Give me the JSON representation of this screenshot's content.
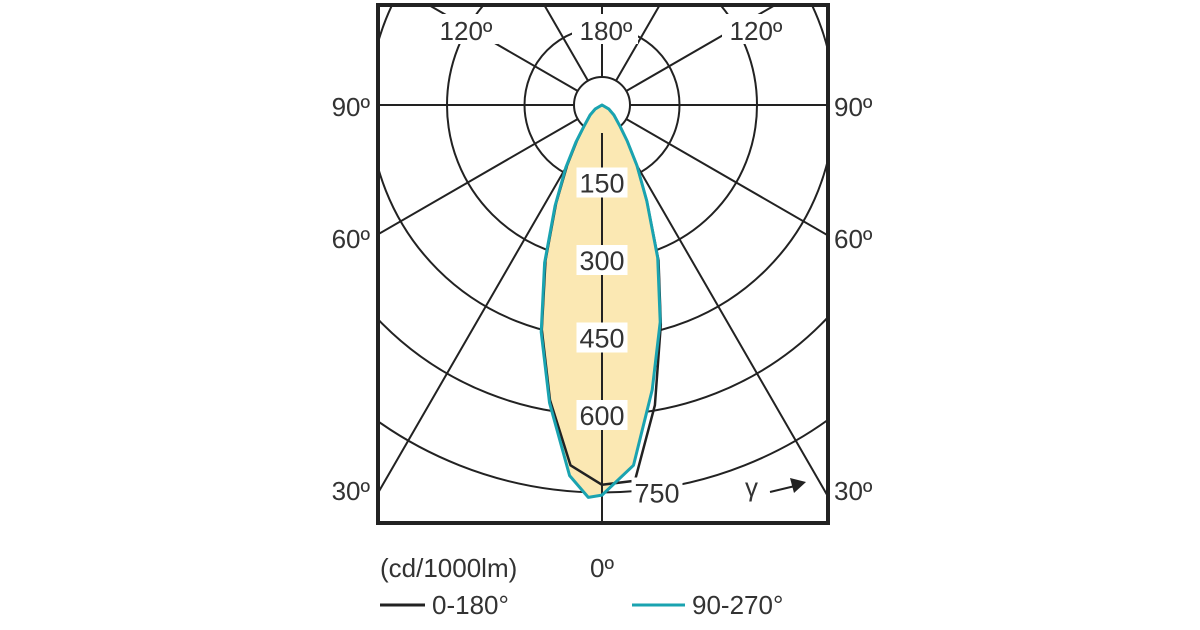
{
  "chart_data": {
    "type": "polar",
    "unit_label": "(cd/1000lm)",
    "zero_label": "0º",
    "gamma_symbol": "γ",
    "angle_labels": {
      "left_top": "120º",
      "top": "180º",
      "right_top": "120º",
      "left_90": "90º",
      "right_90": "90º",
      "left_60": "60º",
      "right_60": "60º",
      "left_30": "30º",
      "right_30": "30º"
    },
    "ring_values": [
      150,
      300,
      450,
      600,
      750
    ],
    "rlim": [
      0,
      750
    ],
    "radial_line_step_deg": 30,
    "fill_color": "#fbe8b3",
    "series": [
      {
        "name": "0-180°",
        "color": "#222222",
        "gamma": [
          -90,
          -60,
          -50,
          -40,
          -35,
          -30,
          -25,
          -20,
          -15,
          -10,
          -5,
          0,
          5,
          10,
          15,
          20,
          25,
          30,
          35,
          40,
          50,
          60,
          90
        ],
        "values": [
          0,
          15,
          30,
          55,
          85,
          135,
          210,
          320,
          450,
          580,
          700,
          735,
          730,
          590,
          440,
          320,
          205,
          135,
          85,
          55,
          30,
          15,
          0
        ]
      },
      {
        "name": "90-270°",
        "color": "#1aa3b0",
        "gamma": [
          -90,
          -60,
          -50,
          -40,
          -35,
          -30,
          -25,
          -20,
          -15,
          -10,
          -5,
          -2,
          0,
          5,
          10,
          15,
          20,
          25,
          30,
          35,
          40,
          50,
          60,
          90
        ],
        "values": [
          0,
          15,
          30,
          55,
          88,
          140,
          215,
          325,
          455,
          585,
          720,
          760,
          755,
          700,
          560,
          435,
          315,
          205,
          135,
          85,
          55,
          30,
          15,
          0
        ]
      }
    ]
  }
}
